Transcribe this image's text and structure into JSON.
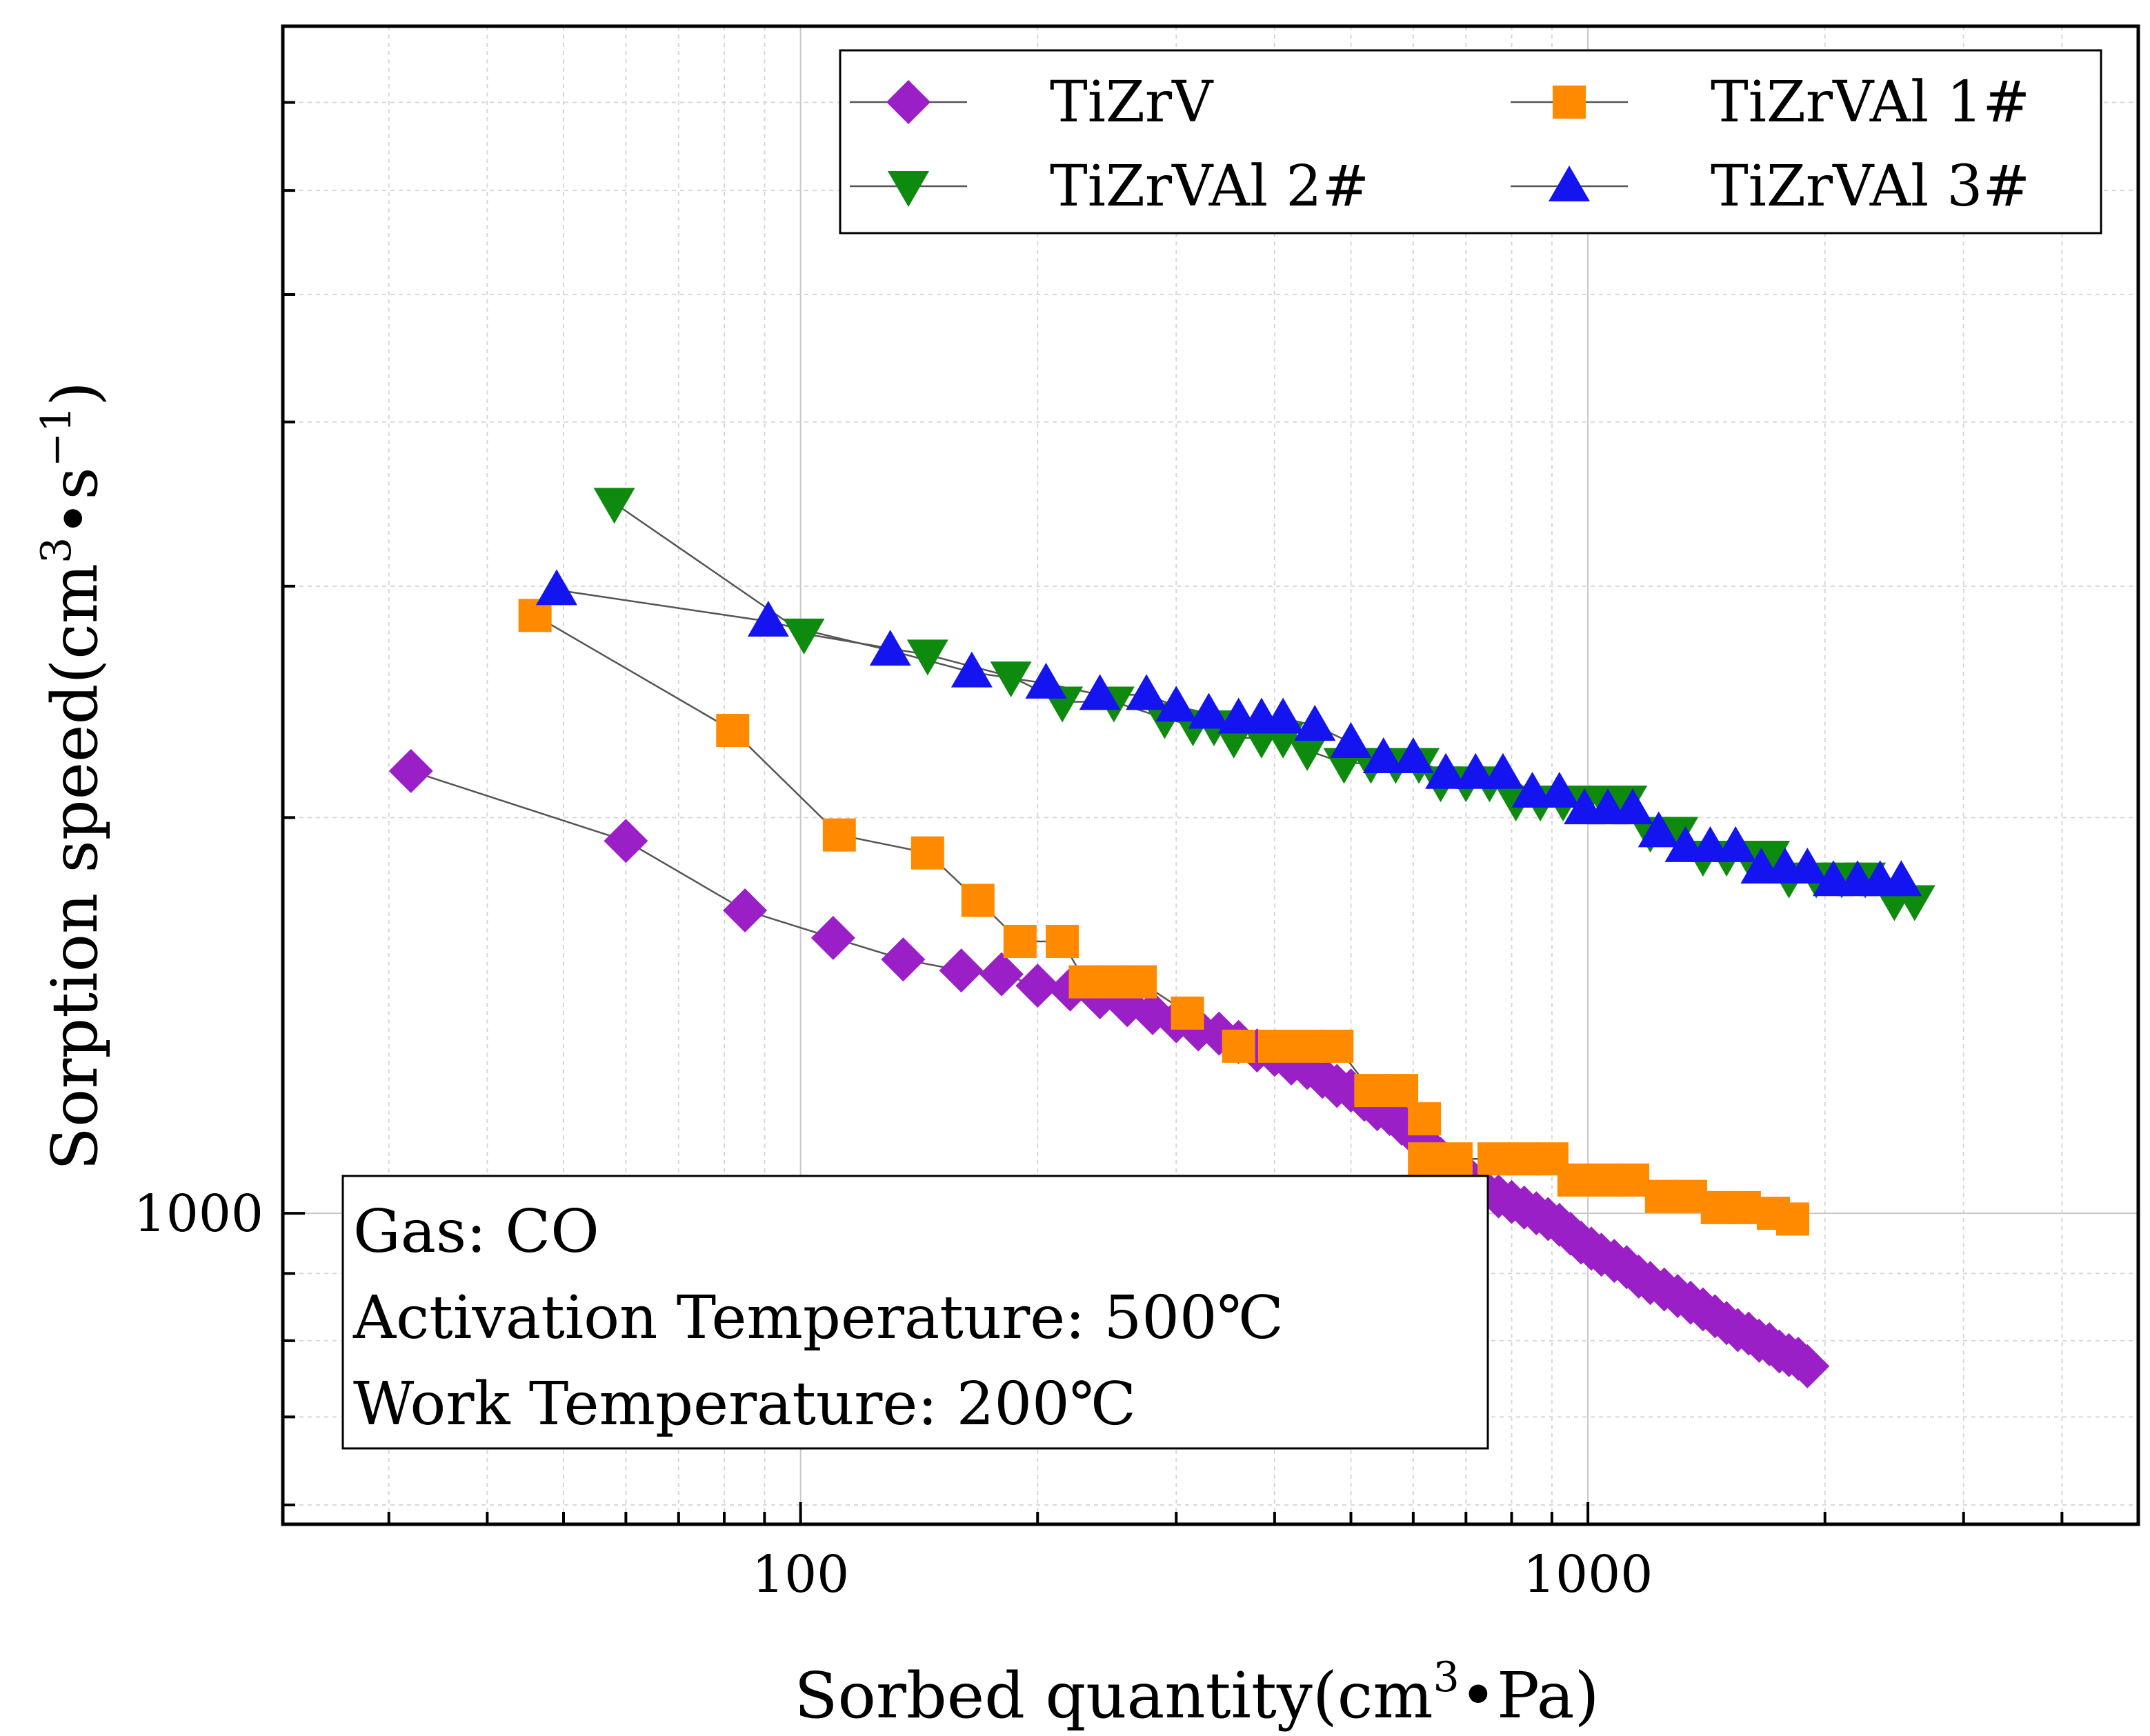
{
  "chart_data": {
    "type": "scatter",
    "title": "",
    "xlabel": "Sorbed quantity(cm",
    "xlabel_sup": "3",
    "xlabel_tail": "•Pa)",
    "ylabel": "Sorption speed(cm",
    "ylabel_sup1": "3",
    "ylabel_mid": "•s",
    "ylabel_sup2": "−1",
    "ylabel_tail": ")",
    "xscale": "log",
    "yscale": "log",
    "xlim": [
      22,
      5000
    ],
    "ylim": [
      580,
      8000
    ],
    "x_tick_labels": [
      {
        "value": 100,
        "label": "100"
      },
      {
        "value": 1000,
        "label": "1000"
      }
    ],
    "y_tick_labels": [
      {
        "value": 1000,
        "label": "1000"
      }
    ],
    "legend_position": "top-right",
    "annotation": {
      "lines": [
        "Gas: CO",
        "Activation Temperature: 500℃",
        "Work Temperature: 200℃"
      ],
      "position": "bottom-left"
    },
    "series": [
      {
        "name": "TiZrV",
        "color": "#9B1FC7",
        "marker": "diamond",
        "points": [
          [
            32,
            2170
          ],
          [
            60,
            1920
          ],
          [
            85,
            1700
          ],
          [
            110,
            1620
          ],
          [
            135,
            1560
          ],
          [
            160,
            1530
          ],
          [
            180,
            1520
          ],
          [
            200,
            1490
          ],
          [
            220,
            1480
          ],
          [
            240,
            1460
          ],
          [
            260,
            1440
          ],
          [
            280,
            1420
          ],
          [
            300,
            1400
          ],
          [
            320,
            1380
          ],
          [
            340,
            1370
          ],
          [
            360,
            1350
          ],
          [
            380,
            1330
          ],
          [
            400,
            1320
          ],
          [
            420,
            1300
          ],
          [
            440,
            1290
          ],
          [
            460,
            1270
          ],
          [
            480,
            1250
          ],
          [
            500,
            1240
          ],
          [
            520,
            1220
          ],
          [
            540,
            1200
          ],
          [
            560,
            1190
          ],
          [
            580,
            1170
          ],
          [
            600,
            1150
          ],
          [
            620,
            1130
          ],
          [
            650,
            1100
          ],
          [
            680,
            1080
          ],
          [
            710,
            1060
          ],
          [
            740,
            1040
          ],
          [
            770,
            1030
          ],
          [
            800,
            1020
          ],
          [
            830,
            1010
          ],
          [
            860,
            1000
          ],
          [
            890,
            990
          ],
          [
            920,
            980
          ],
          [
            950,
            965
          ],
          [
            980,
            950
          ],
          [
            1010,
            940
          ],
          [
            1040,
            930
          ],
          [
            1080,
            920
          ],
          [
            1120,
            910
          ],
          [
            1160,
            895
          ],
          [
            1200,
            885
          ],
          [
            1250,
            875
          ],
          [
            1300,
            865
          ],
          [
            1350,
            855
          ],
          [
            1400,
            845
          ],
          [
            1450,
            835
          ],
          [
            1500,
            825
          ],
          [
            1550,
            815
          ],
          [
            1600,
            810
          ],
          [
            1650,
            800
          ],
          [
            1700,
            795
          ],
          [
            1750,
            785
          ],
          [
            1800,
            780
          ],
          [
            1850,
            775
          ],
          [
            1900,
            765
          ]
        ]
      },
      {
        "name": "TiZrVAl 1#",
        "color": "#FF8A00",
        "marker": "square",
        "points": [
          [
            46,
            2850
          ],
          [
            82,
            2330
          ],
          [
            112,
            1940
          ],
          [
            145,
            1880
          ],
          [
            168,
            1730
          ],
          [
            190,
            1610
          ],
          [
            215,
            1610
          ],
          [
            230,
            1500
          ],
          [
            250,
            1500
          ],
          [
            270,
            1500
          ],
          [
            310,
            1420
          ],
          [
            360,
            1340
          ],
          [
            400,
            1340
          ],
          [
            440,
            1340
          ],
          [
            480,
            1340
          ],
          [
            530,
            1240
          ],
          [
            580,
            1240
          ],
          [
            620,
            1180
          ],
          [
            620,
            1100
          ],
          [
            680,
            1100
          ],
          [
            760,
            1100
          ],
          [
            830,
            1100
          ],
          [
            900,
            1100
          ],
          [
            960,
            1060
          ],
          [
            1050,
            1060
          ],
          [
            1140,
            1060
          ],
          [
            1240,
            1030
          ],
          [
            1350,
            1030
          ],
          [
            1460,
            1010
          ],
          [
            1580,
            1010
          ],
          [
            1720,
            1000
          ],
          [
            1820,
            990
          ]
        ]
      },
      {
        "name": "TiZrVAl 2#",
        "color": "#0E8A0E",
        "marker": "down-triangle",
        "points": [
          [
            58,
            3470
          ],
          [
            101,
            2760
          ],
          [
            145,
            2660
          ],
          [
            185,
            2560
          ],
          [
            215,
            2450
          ],
          [
            250,
            2450
          ],
          [
            290,
            2380
          ],
          [
            315,
            2350
          ],
          [
            335,
            2350
          ],
          [
            355,
            2300
          ],
          [
            385,
            2300
          ],
          [
            410,
            2300
          ],
          [
            440,
            2250
          ],
          [
            490,
            2200
          ],
          [
            530,
            2200
          ],
          [
            570,
            2200
          ],
          [
            610,
            2200
          ],
          [
            650,
            2130
          ],
          [
            700,
            2130
          ],
          [
            750,
            2130
          ],
          [
            810,
            2060
          ],
          [
            870,
            2060
          ],
          [
            930,
            2060
          ],
          [
            990,
            2060
          ],
          [
            1050,
            2060
          ],
          [
            1120,
            2060
          ],
          [
            1200,
            1950
          ],
          [
            1300,
            1950
          ],
          [
            1400,
            1870
          ],
          [
            1500,
            1870
          ],
          [
            1600,
            1870
          ],
          [
            1700,
            1870
          ],
          [
            1800,
            1800
          ],
          [
            1950,
            1800
          ],
          [
            2100,
            1800
          ],
          [
            2250,
            1800
          ],
          [
            2450,
            1730
          ],
          [
            2600,
            1730
          ]
        ]
      },
      {
        "name": "TiZrVAl 3#",
        "color": "#1414F0",
        "marker": "up-triangle",
        "points": [
          [
            49,
            2980
          ],
          [
            91,
            2820
          ],
          [
            130,
            2680
          ],
          [
            165,
            2580
          ],
          [
            205,
            2530
          ],
          [
            240,
            2480
          ],
          [
            275,
            2480
          ],
          [
            300,
            2430
          ],
          [
            330,
            2400
          ],
          [
            360,
            2380
          ],
          [
            385,
            2380
          ],
          [
            410,
            2380
          ],
          [
            450,
            2350
          ],
          [
            500,
            2280
          ],
          [
            550,
            2220
          ],
          [
            600,
            2220
          ],
          [
            660,
            2160
          ],
          [
            720,
            2160
          ],
          [
            780,
            2160
          ],
          [
            850,
            2090
          ],
          [
            920,
            2090
          ],
          [
            990,
            2030
          ],
          [
            1060,
            2030
          ],
          [
            1140,
            2030
          ],
          [
            1230,
            1950
          ],
          [
            1330,
            1900
          ],
          [
            1430,
            1900
          ],
          [
            1540,
            1900
          ],
          [
            1660,
            1830
          ],
          [
            1780,
            1830
          ],
          [
            1900,
            1830
          ],
          [
            2050,
            1790
          ],
          [
            2200,
            1790
          ],
          [
            2350,
            1790
          ],
          [
            2500,
            1790
          ]
        ]
      }
    ]
  }
}
